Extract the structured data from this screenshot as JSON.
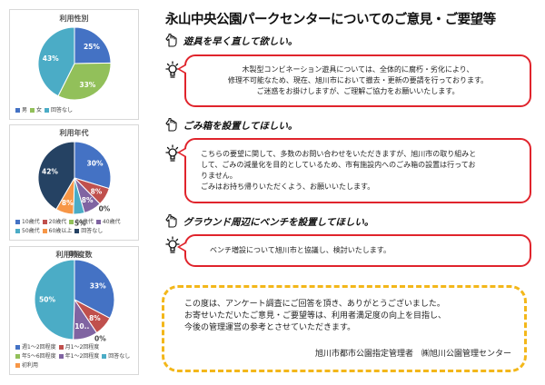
{
  "colors": {
    "blue": "#4472C4",
    "green": "#92C05A",
    "lightblue": "#4BACC6",
    "orange": "#F79646",
    "red": "#C0504D",
    "purple": "#8064A2",
    "navy": "#254263",
    "gray": "#A5A5A5",
    "bubble_border": "#E0242C",
    "note_border": "#F3B71A"
  },
  "chart_data": [
    {
      "type": "pie",
      "title": "利用性別",
      "labels": [
        "男",
        "女",
        "回答なし"
      ],
      "values": [
        25,
        33,
        43
      ],
      "data_labels": [
        "25%",
        "33%",
        "43%"
      ],
      "colors": [
        "#4472C4",
        "#92C05A",
        "#4BACC6"
      ],
      "legend_position": "bottom"
    },
    {
      "type": "pie",
      "title": "利用年代",
      "labels": [
        "10歳代",
        "20歳代",
        "30歳代",
        "40歳代",
        "50歳代",
        "60歳以上",
        "回答なし"
      ],
      "values": [
        30,
        8,
        0,
        8,
        5,
        8,
        42
      ],
      "data_labels": [
        "30%",
        "8%",
        "0%",
        "8%",
        "5%",
        "8%",
        "42%"
      ],
      "colors": [
        "#4472C4",
        "#C0504D",
        "#92C05A",
        "#8064A2",
        "#4BACC6",
        "#F79646",
        "#254263"
      ],
      "legend_position": "bottom"
    },
    {
      "type": "pie",
      "title": "利用頻度数",
      "labels": [
        "週1～2回程度",
        "月1～2回程度",
        "年5～6回程度",
        "年1～2回程度",
        "回答なし",
        "初利用"
      ],
      "values": [
        33,
        8,
        0,
        10,
        50,
        0
      ],
      "data_labels": [
        "33%",
        "8%",
        "0%",
        "10..",
        "50%",
        "0%"
      ],
      "colors": [
        "#4472C4",
        "#C0504D",
        "#92C05A",
        "#8064A2",
        "#4BACC6",
        "#F79646"
      ],
      "legend_position": "bottom"
    }
  ],
  "page": {
    "title": "永山中央公園パークセンターについてのご意見・ご要望等"
  },
  "sections": [
    {
      "heading": "遊具を早く直して欲しい。",
      "answer": "木製型コンビネーション遊具については、全体的に腐朽・劣化により、\n修理不可能なため、現在、旭川市において撤去・更新の要請を行っております。\nご迷惑をお掛けしますが、ご理解ご協力をお願いいたします。"
    },
    {
      "heading": "ごみ箱を設置してほしい。",
      "answer": "こちらの要望に関して、多数のお問い合わせをいただきますが、旭川市の取り組みと\nして、ごみの減量化を目的としているため、市有施設内へのごみ箱の設置は行ってお\nりません。\nごみはお持ち帰りいただくよう、お願いいたします。"
    },
    {
      "heading": "グラウンド周辺にベンチを設置してほしい。",
      "answer": "ベンチ増設について旭川市と協議し、検討いたします。"
    }
  ],
  "note": {
    "text": "この度は、アンケート調査にご回答を頂き、ありがとうございました。\nお寄せいただいたご意見・ご要望等は、利用者満足度の向上を目指し、\n今後の管理運営の参考とさせていただきます。",
    "signature": "旭川市都市公園指定管理者　㈱旭川公園管理センター"
  },
  "icons": {
    "heading": "pointing-hand-icon",
    "answer": "lightbulb-icon"
  }
}
